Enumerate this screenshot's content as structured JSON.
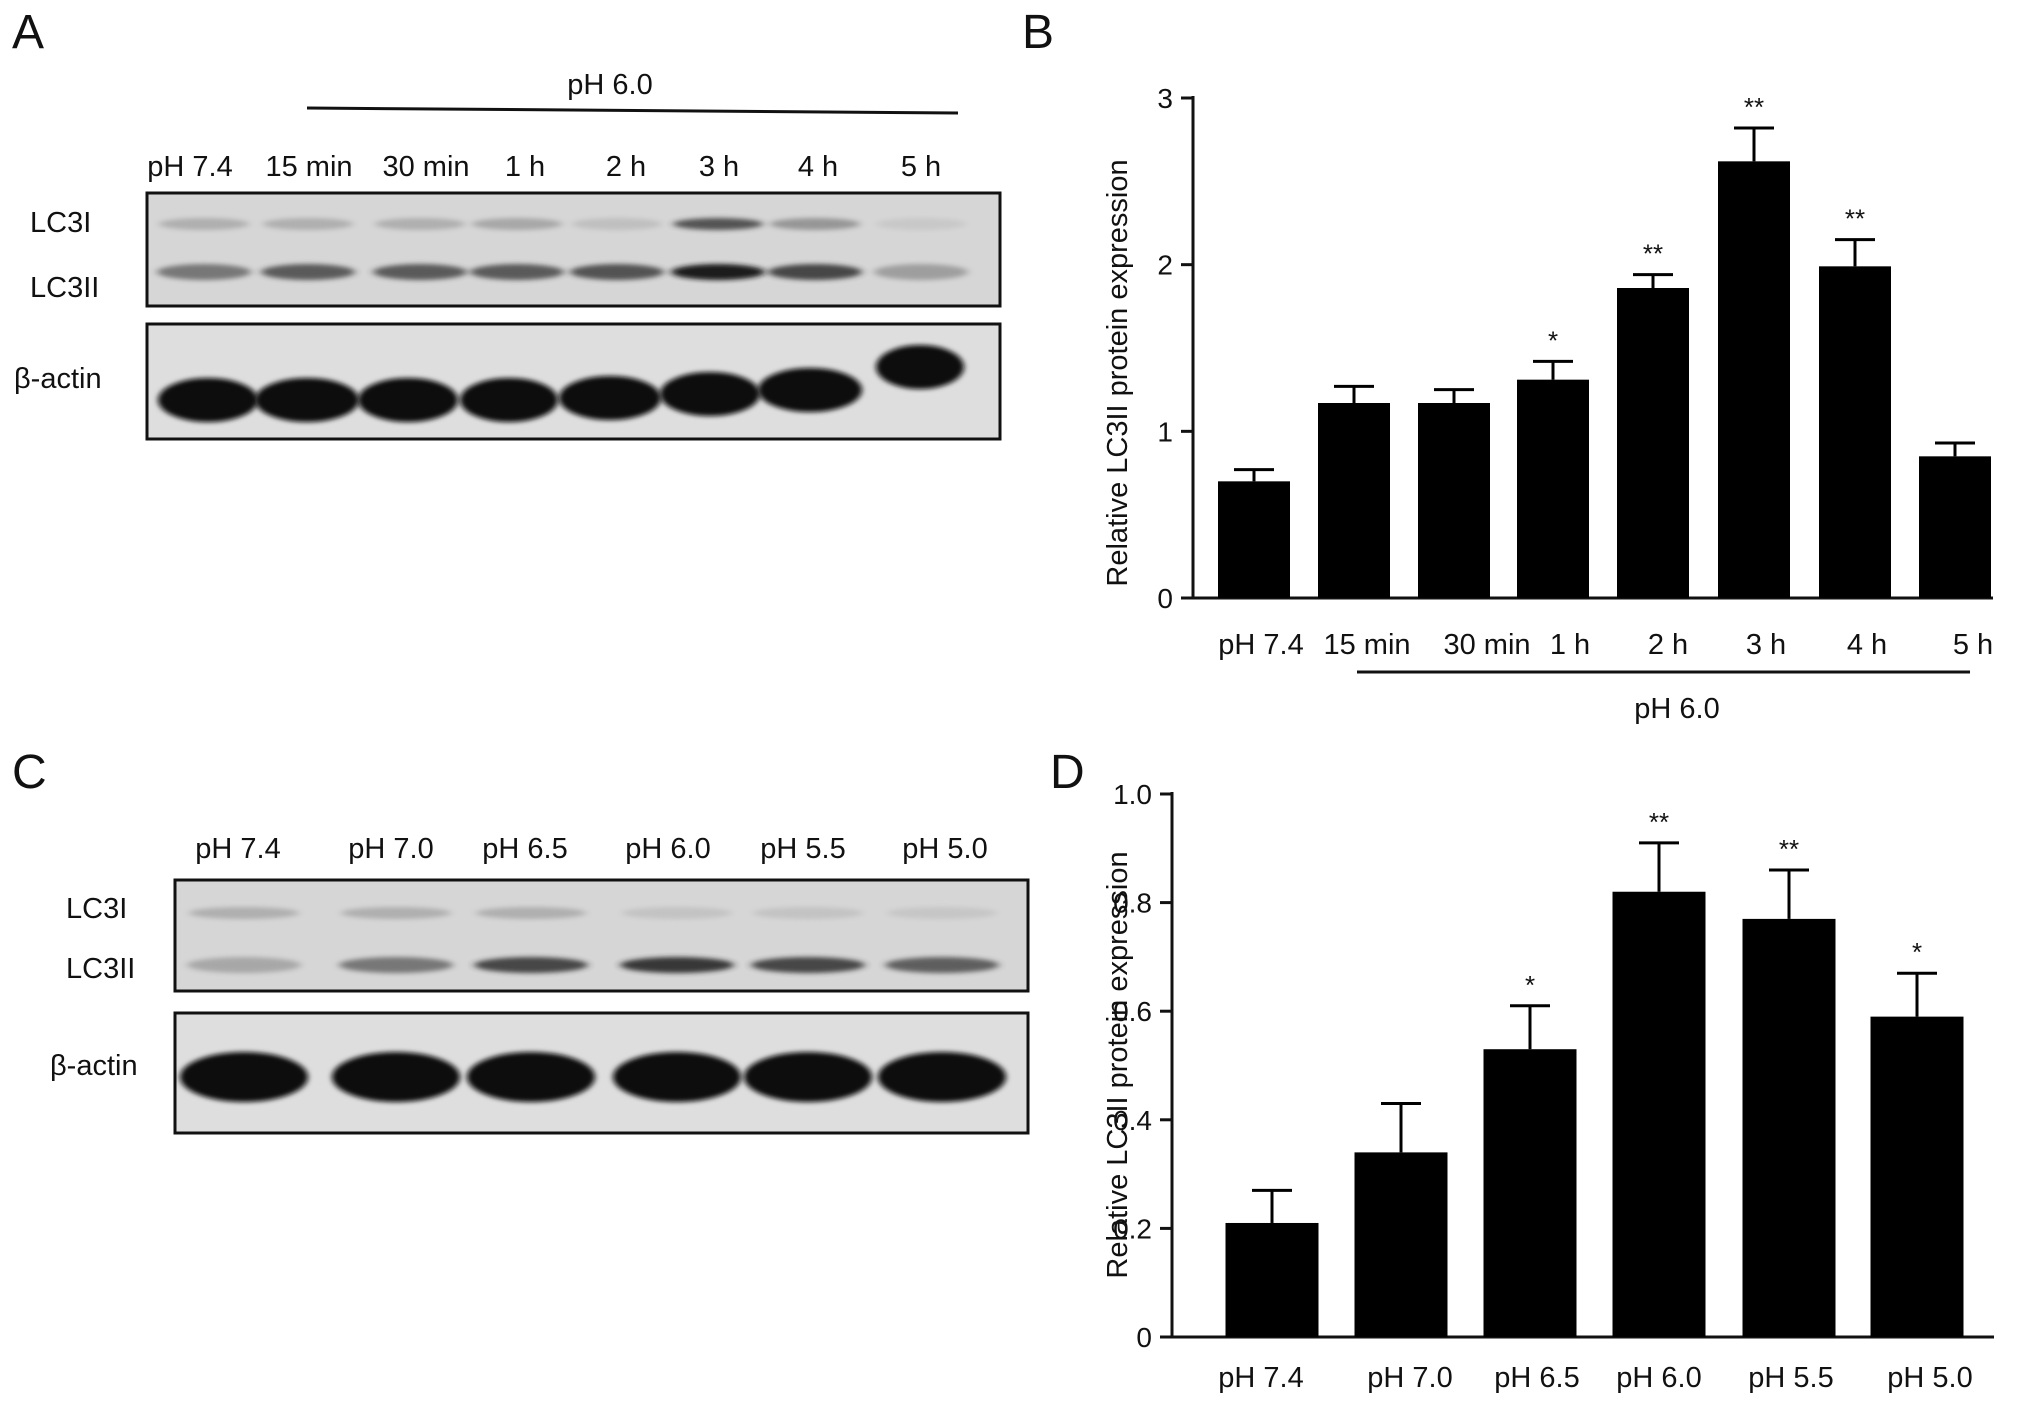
{
  "panels": {
    "A": {
      "letter": "A",
      "header": "pH 6.0",
      "lanes": [
        "pH 7.4",
        "15 min",
        "30 min",
        "1 h",
        "2 h",
        "3 h",
        "4 h",
        "5 h"
      ],
      "row_labels": {
        "lc3i": "LC3I",
        "lc3ii": "LC3II",
        "actin": "β-actin"
      },
      "lc3i_intensity": [
        0.3,
        0.3,
        0.3,
        0.35,
        0.18,
        0.75,
        0.45,
        0.1
      ],
      "lc3ii_intensity": [
        0.6,
        0.72,
        0.72,
        0.72,
        0.75,
        0.95,
        0.8,
        0.4
      ]
    },
    "C": {
      "letter": "C",
      "lanes": [
        "pH 7.4",
        "pH 7.0",
        "pH 6.5",
        "pH 6.0",
        "pH 5.5",
        "pH 5.0"
      ],
      "row_labels": {
        "lc3i": "LC3I",
        "lc3ii": "LC3II",
        "actin": "β-actin"
      },
      "lc3i_intensity": [
        0.3,
        0.3,
        0.3,
        0.15,
        0.15,
        0.12
      ],
      "lc3ii_intensity": [
        0.35,
        0.6,
        0.8,
        0.85,
        0.8,
        0.7
      ]
    },
    "B": {
      "letter": "B"
    },
    "D": {
      "letter": "D"
    }
  },
  "chart_data": [
    {
      "panel": "B",
      "type": "bar",
      "categories": [
        "pH 7.4",
        "15 min",
        "30 min",
        "1 h",
        "2 h",
        "3 h",
        "4 h",
        "5 h"
      ],
      "values": [
        0.7,
        1.17,
        1.17,
        1.31,
        1.86,
        2.62,
        1.99,
        0.85
      ],
      "errors": [
        0.07,
        0.1,
        0.08,
        0.11,
        0.08,
        0.2,
        0.16,
        0.08
      ],
      "significance": [
        "",
        "",
        "",
        "*",
        "**",
        "**",
        "**",
        ""
      ],
      "ylabel": "Relative LC3II protein expression",
      "xlabel": "",
      "group_label": "pH 6.0",
      "ylim": [
        0,
        3
      ],
      "yticks": [
        "0",
        "1",
        "2",
        "3"
      ],
      "ytick_values": [
        0,
        1,
        2,
        3
      ],
      "bar_color": "#000000",
      "grid": false
    },
    {
      "panel": "D",
      "type": "bar",
      "categories": [
        "pH 7.4",
        "pH 7.0",
        "pH 6.5",
        "pH 6.0",
        "pH 5.5",
        "pH 5.0"
      ],
      "values": [
        0.21,
        0.34,
        0.53,
        0.82,
        0.77,
        0.59
      ],
      "errors": [
        0.06,
        0.09,
        0.08,
        0.09,
        0.09,
        0.08
      ],
      "significance": [
        "",
        "",
        "*",
        "**",
        "**",
        "*"
      ],
      "ylabel": "Relative LC3II protein expression",
      "xlabel": "",
      "ylim": [
        0,
        1.0
      ],
      "yticks": [
        "0",
        "0.2",
        "0.4",
        "0.6",
        "0.8",
        "1.0"
      ],
      "ytick_values": [
        0,
        0.2,
        0.4,
        0.6,
        0.8,
        1.0
      ],
      "bar_color": "#000000",
      "grid": false
    }
  ]
}
